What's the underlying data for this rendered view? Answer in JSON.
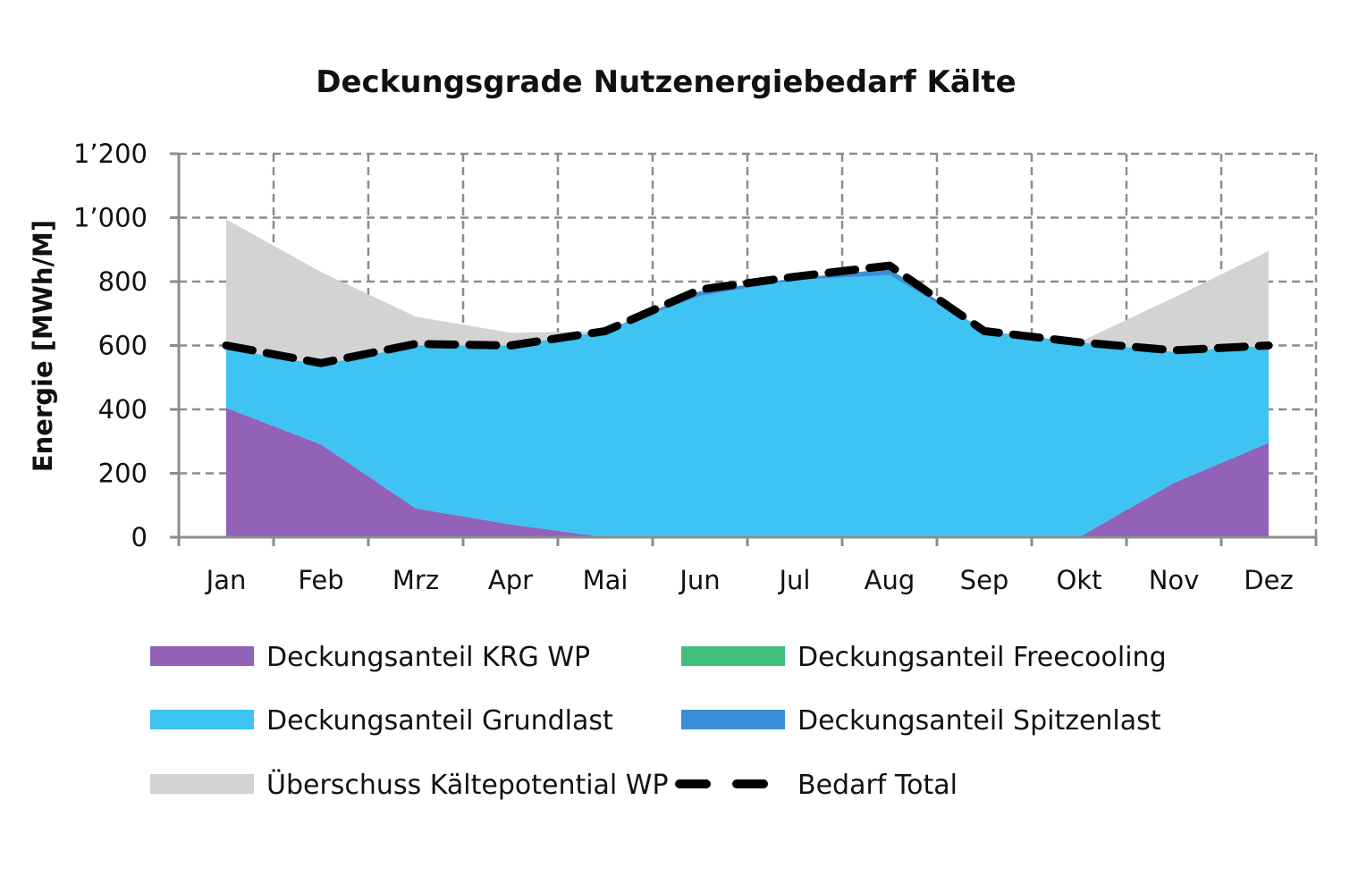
{
  "chart_data": {
    "type": "area",
    "title": "Deckungsgrade Nutzenergiebedarf Kälte",
    "xlabel": "",
    "ylabel": "Energie [MWh/M]",
    "ylim": [
      0,
      1200
    ],
    "yticks": [
      0,
      200,
      400,
      600,
      800,
      1000,
      1200
    ],
    "ytick_labels": [
      "0",
      "200",
      "400",
      "600",
      "800",
      "1’000",
      "1’200"
    ],
    "grid": true,
    "legend_position": "bottom",
    "categories": [
      "Jan",
      "Feb",
      "Mrz",
      "Apr",
      "Mai",
      "Jun",
      "Jul",
      "Aug",
      "Sep",
      "Okt",
      "Nov",
      "Dez"
    ],
    "series": [
      {
        "name": "Deckungsanteil KRG WP",
        "color": "#9162b8",
        "kind": "stacked-area",
        "values": [
          405,
          290,
          90,
          40,
          0,
          0,
          0,
          0,
          0,
          0,
          170,
          295
        ]
      },
      {
        "name": "Deckungsanteil Freecooling",
        "color": "#3fc17b",
        "kind": "stacked-area",
        "values": [
          0,
          0,
          0,
          0,
          0,
          0,
          0,
          0,
          0,
          0,
          0,
          0
        ]
      },
      {
        "name": "Deckungsanteil Grundlast",
        "color": "#3ec3f2",
        "kind": "stacked-area",
        "values": [
          185,
          250,
          510,
          560,
          645,
          755,
          805,
          820,
          645,
          610,
          410,
          305
        ]
      },
      {
        "name": "Deckungsanteil Spitzenlast",
        "color": "#3a8fd6",
        "kind": "stacked-area",
        "values": [
          0,
          0,
          0,
          0,
          0,
          15,
          5,
          20,
          0,
          0,
          0,
          0
        ]
      },
      {
        "name": "Überschuss Kältepotential WP",
        "color": "#d3d3d3",
        "kind": "stacked-area",
        "values": [
          405,
          290,
          90,
          40,
          0,
          0,
          0,
          0,
          0,
          0,
          170,
          295
        ]
      },
      {
        "name": "Bedarf Total",
        "color": "#000000",
        "kind": "dashed-line",
        "values": [
          600,
          545,
          605,
          600,
          645,
          775,
          815,
          850,
          645,
          610,
          585,
          600
        ]
      }
    ]
  }
}
